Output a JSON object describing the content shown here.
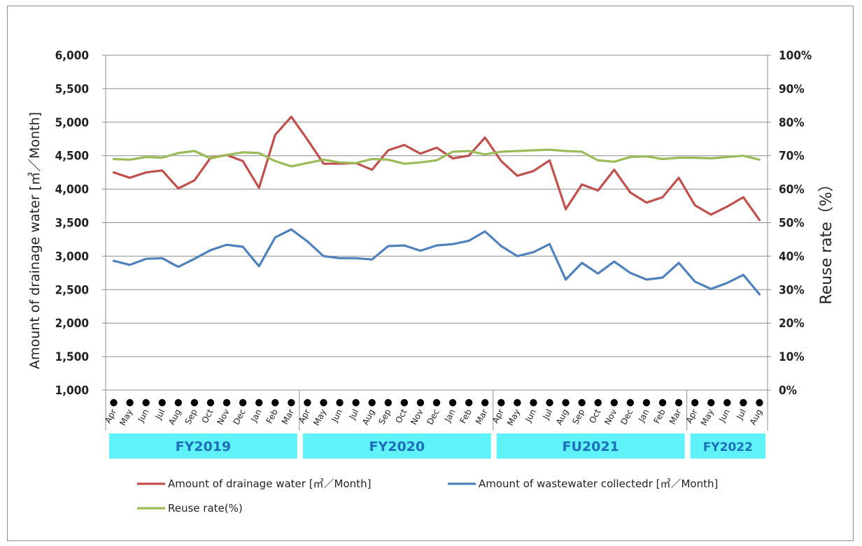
{
  "chart_data": {
    "type": "line",
    "ylabel_left": "Amount of drainage water [㎥／Month]",
    "ylabel_right": "Reuse rate（%）",
    "ylim_left": [
      1000,
      6000
    ],
    "yticks_left": [
      "1,000",
      "1,500",
      "2,000",
      "2,500",
      "3,000",
      "3,500",
      "4,000",
      "4,500",
      "5,000",
      "5,500",
      "6,000"
    ],
    "ylim_right": [
      0,
      100
    ],
    "yticks_right": [
      "0%",
      "10%",
      "20%",
      "30%",
      "40%",
      "50%",
      "60%",
      "70%",
      "80%",
      "90%",
      "100%"
    ],
    "grid": true,
    "legend_position": "bottom",
    "x": [
      "Apr",
      "May",
      "Jun",
      "Jul",
      "Aug",
      "Sep",
      "Oct",
      "Nov",
      "Dec",
      "Jan",
      "Feb",
      "Mar",
      "Apr",
      "May",
      "Jun",
      "Jul",
      "Aug",
      "Sep",
      "Oct",
      "Nov",
      "Dec",
      "Jan",
      "Feb",
      "Mar",
      "Apr",
      "May",
      "Jun",
      "Jul",
      "Aug",
      "Sep",
      "Oct",
      "Nov",
      "Dec",
      "Jan",
      "Feb",
      "Mar",
      "Apr",
      "May",
      "Jun",
      "Jul",
      "Aug"
    ],
    "fiscal_years": [
      {
        "label": "FY2019",
        "start": 0,
        "end": 11
      },
      {
        "label": "FY2020",
        "start": 12,
        "end": 23
      },
      {
        "label": "FU2021",
        "start": 24,
        "end": 35
      },
      {
        "label": "FY2022",
        "start": 36,
        "end": 40
      }
    ],
    "series": [
      {
        "name": "Amount of drainage water [㎥／Month]",
        "axis": "left",
        "color": "#c0504d",
        "values": [
          4250,
          4170,
          4250,
          4280,
          4010,
          4130,
          4470,
          4510,
          4420,
          4020,
          4810,
          5080,
          4740,
          4380,
          4380,
          4390,
          4290,
          4580,
          4660,
          4530,
          4620,
          4460,
          4500,
          4770,
          4420,
          4200,
          4270,
          4430,
          3700,
          4070,
          3980,
          4290,
          3950,
          3800,
          3880,
          4170,
          3760,
          3620,
          3740,
          3880,
          3540
        ]
      },
      {
        "name": "Amount of wastewater collectedr [㎥／Month]",
        "axis": "left",
        "color": "#4f81bd",
        "values": [
          2930,
          2870,
          2960,
          2970,
          2840,
          2960,
          3090,
          3170,
          3140,
          2850,
          3280,
          3400,
          3220,
          3000,
          2970,
          2970,
          2950,
          3150,
          3160,
          3080,
          3160,
          3180,
          3230,
          3370,
          3150,
          3000,
          3060,
          3180,
          2650,
          2900,
          2740,
          2920,
          2750,
          2650,
          2680,
          2900,
          2620,
          2510,
          2600,
          2720,
          2430
        ]
      },
      {
        "name": "Reuse rate(%)",
        "axis": "right",
        "color": "#9bbb59",
        "values": [
          69.0,
          68.8,
          69.6,
          69.4,
          70.8,
          71.4,
          69.2,
          70.2,
          71.0,
          70.8,
          68.4,
          66.8,
          67.8,
          68.8,
          68.0,
          67.8,
          69.0,
          68.8,
          67.6,
          68.0,
          68.6,
          71.2,
          71.4,
          70.4,
          71.2,
          71.4,
          71.6,
          71.8,
          71.4,
          71.2,
          68.6,
          68.2,
          69.6,
          69.8,
          69.0,
          69.4,
          69.4,
          69.2,
          69.6,
          70.0,
          68.8
        ]
      }
    ]
  }
}
